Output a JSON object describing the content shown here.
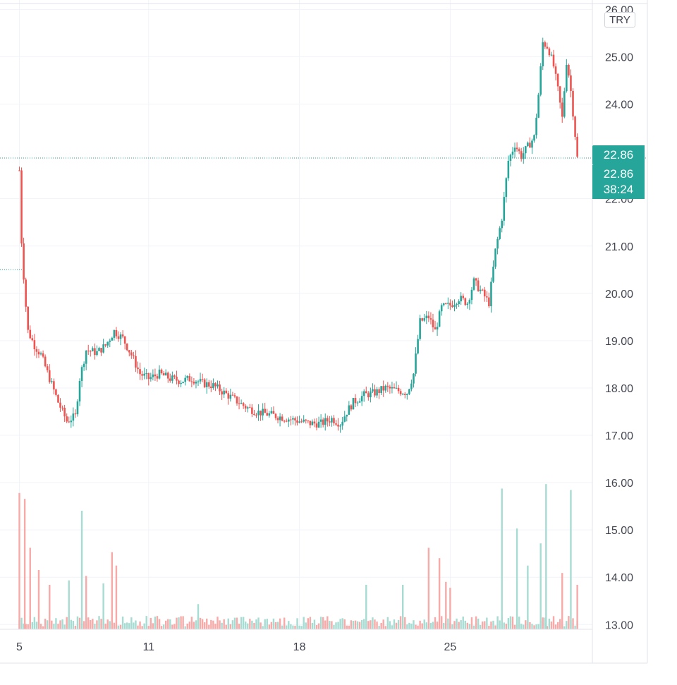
{
  "chart_data": {
    "type": "candlestick",
    "currency": "TRY",
    "last_price": "22.86",
    "live_price": "22.86",
    "countdown": "38:24",
    "ylim": [
      12.9,
      26.2
    ],
    "y_ticks": [
      "26.00",
      "25.00",
      "24.00",
      "22.00",
      "21.00",
      "20.00",
      "19.00",
      "18.00",
      "17.00",
      "16.00",
      "15.00",
      "14.00",
      "13.00"
    ],
    "x_ticks": [
      {
        "label": "5",
        "x": 5
      },
      {
        "label": "11",
        "x": 11
      },
      {
        "label": "18",
        "x": 18
      },
      {
        "label": "25",
        "x": 25
      }
    ],
    "x_range": [
      4.1,
      31.6
    ],
    "colors": {
      "up": "#26a69a",
      "down": "#ef5350",
      "up_volume": "#a7dcd3",
      "down_volume": "#f7aaa8"
    },
    "price_path": [
      [
        5.0,
        22.6
      ],
      [
        5.1,
        21.1
      ],
      [
        5.25,
        20.0
      ],
      [
        5.4,
        19.2
      ],
      [
        5.7,
        18.9
      ],
      [
        6.0,
        18.7
      ],
      [
        6.4,
        18.2
      ],
      [
        6.8,
        17.7
      ],
      [
        7.2,
        17.3
      ],
      [
        7.6,
        17.4
      ],
      [
        7.8,
        18.2
      ],
      [
        8.1,
        18.8
      ],
      [
        8.6,
        18.75
      ],
      [
        9.0,
        18.9
      ],
      [
        9.4,
        19.2
      ],
      [
        9.8,
        19.05
      ],
      [
        10.2,
        18.7
      ],
      [
        10.6,
        18.3
      ],
      [
        11.0,
        18.2
      ],
      [
        11.5,
        18.3
      ],
      [
        12.0,
        18.2
      ],
      [
        12.5,
        18.15
      ],
      [
        13.0,
        18.2
      ],
      [
        13.5,
        18.1
      ],
      [
        14.0,
        18.05
      ],
      [
        14.5,
        17.9
      ],
      [
        15.0,
        17.75
      ],
      [
        15.5,
        17.6
      ],
      [
        16.0,
        17.5
      ],
      [
        16.5,
        17.45
      ],
      [
        17.0,
        17.4
      ],
      [
        17.5,
        17.35
      ],
      [
        18.0,
        17.3
      ],
      [
        18.5,
        17.25
      ],
      [
        19.0,
        17.25
      ],
      [
        19.5,
        17.35
      ],
      [
        19.9,
        17.25
      ],
      [
        20.2,
        17.5
      ],
      [
        20.5,
        17.7
      ],
      [
        21.0,
        17.85
      ],
      [
        21.5,
        17.9
      ],
      [
        22.0,
        18.0
      ],
      [
        22.5,
        17.95
      ],
      [
        23.0,
        17.9
      ],
      [
        23.3,
        18.3
      ],
      [
        23.6,
        19.4
      ],
      [
        24.0,
        19.5
      ],
      [
        24.3,
        19.2
      ],
      [
        24.6,
        19.7
      ],
      [
        25.0,
        19.75
      ],
      [
        25.4,
        19.9
      ],
      [
        25.8,
        19.8
      ],
      [
        26.1,
        20.25
      ],
      [
        26.5,
        20.0
      ],
      [
        26.8,
        19.8
      ],
      [
        27.1,
        20.9
      ],
      [
        27.4,
        21.6
      ],
      [
        27.7,
        22.8
      ],
      [
        28.0,
        23.15
      ],
      [
        28.3,
        22.9
      ],
      [
        28.6,
        23.1
      ],
      [
        28.9,
        23.3
      ],
      [
        29.1,
        24.2
      ],
      [
        29.3,
        25.3
      ],
      [
        29.55,
        25.2
      ],
      [
        29.8,
        24.8
      ],
      [
        30.0,
        24.3
      ],
      [
        30.2,
        23.7
      ],
      [
        30.4,
        24.9
      ],
      [
        30.55,
        24.5
      ],
      [
        30.75,
        23.6
      ],
      [
        30.9,
        22.86
      ]
    ],
    "volume_spikes": [
      {
        "x": 5.0,
        "h": 0.92,
        "up": false
      },
      {
        "x": 5.25,
        "h": 0.88,
        "up": false
      },
      {
        "x": 5.5,
        "h": 0.55,
        "up": false
      },
      {
        "x": 5.9,
        "h": 0.4,
        "up": false
      },
      {
        "x": 6.4,
        "h": 0.3,
        "up": false
      },
      {
        "x": 7.3,
        "h": 0.33,
        "up": true
      },
      {
        "x": 7.9,
        "h": 0.8,
        "up": true
      },
      {
        "x": 8.1,
        "h": 0.36,
        "up": false
      },
      {
        "x": 8.9,
        "h": 0.31,
        "up": true
      },
      {
        "x": 9.3,
        "h": 0.52,
        "up": false
      },
      {
        "x": 9.5,
        "h": 0.43,
        "up": false
      },
      {
        "x": 13.3,
        "h": 0.17,
        "up": true
      },
      {
        "x": 17.0,
        "h": 0.05,
        "up": true
      },
      {
        "x": 21.1,
        "h": 0.3,
        "up": true
      },
      {
        "x": 22.8,
        "h": 0.3,
        "up": true
      },
      {
        "x": 24.0,
        "h": 0.55,
        "up": false
      },
      {
        "x": 24.5,
        "h": 0.48,
        "up": false
      },
      {
        "x": 24.8,
        "h": 0.32,
        "up": false
      },
      {
        "x": 25.0,
        "h": 0.28,
        "up": false
      },
      {
        "x": 27.4,
        "h": 0.95,
        "up": true
      },
      {
        "x": 28.1,
        "h": 0.68,
        "up": true
      },
      {
        "x": 28.6,
        "h": 0.43,
        "up": true
      },
      {
        "x": 29.2,
        "h": 0.58,
        "up": true
      },
      {
        "x": 29.45,
        "h": 0.98,
        "up": true
      },
      {
        "x": 30.2,
        "h": 0.38,
        "up": false
      },
      {
        "x": 30.6,
        "h": 0.94,
        "up": true
      },
      {
        "x": 30.9,
        "h": 0.3,
        "up": false
      }
    ]
  }
}
